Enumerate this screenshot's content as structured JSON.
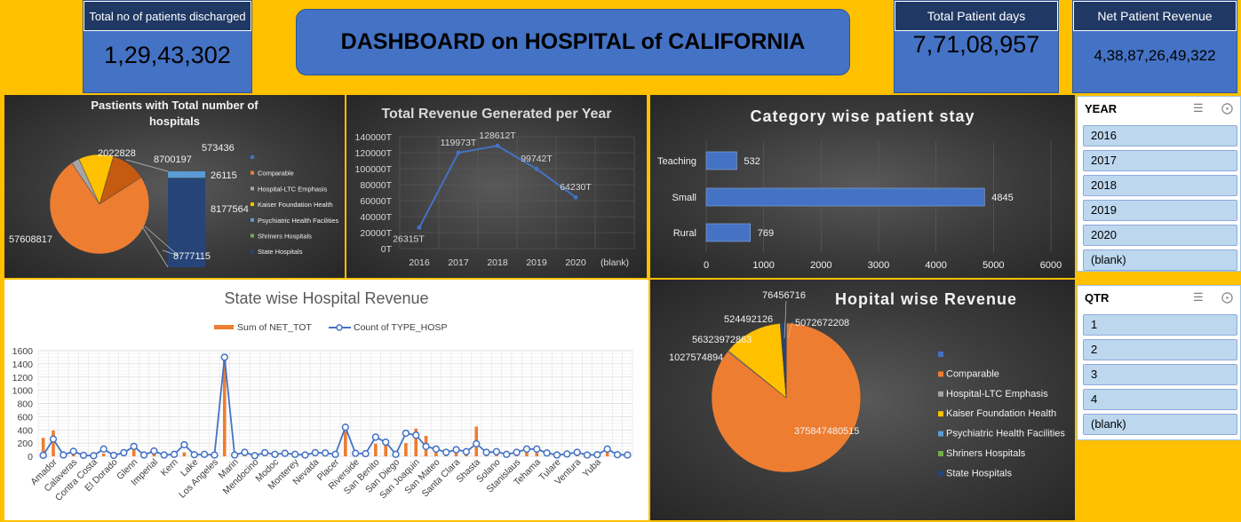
{
  "kpis": {
    "discharged": {
      "label": "Total no of patients discharged",
      "value": "1,29,43,302"
    },
    "patient_days": {
      "label": "Total Patient days",
      "value": "7,71,08,957"
    },
    "net_revenue": {
      "label": "Net Patient Revenue",
      "value": "4,38,87,26,49,322"
    }
  },
  "dashboard_title": "DASHBOARD on HOSPITAL of CALIFORNIA",
  "slicers": {
    "year": {
      "title": "YEAR",
      "items": [
        "2016",
        "2017",
        "2018",
        "2019",
        "2020",
        "(blank)"
      ]
    },
    "qtr": {
      "title": "QTR",
      "items": [
        "1",
        "2",
        "3",
        "4",
        "(blank)"
      ]
    }
  },
  "chart_data": [
    {
      "type": "pie",
      "title": "Pastients with Total number of hospitals",
      "legend_position": "right",
      "legend": [
        "",
        "Comparable",
        "Hospital-LTC Emphasis",
        "Kaiser Foundation Health",
        "Psychiatric Health Facilities",
        "Shriners Hospitals",
        "State Hospitals"
      ],
      "colors": [
        "#4472C4",
        "#ED7D31",
        "#A5A5A5",
        "#FFC000",
        "#5B9BD5",
        "#70AD47",
        "#264478"
      ],
      "pie_slices": [
        {
          "label": "Comparable",
          "value": 57608817,
          "color": "#ED7D31"
        },
        {
          "label": "Hospital-LTC Emphasis",
          "value": 2022828,
          "color": "#A5A5A5"
        },
        {
          "label": "Kaiser Foundation Health",
          "value": 8700197,
          "color": "#FFC000"
        },
        {
          "label": "",
          "value": 8777115,
          "color": "#C55A11"
        }
      ],
      "bar_of_pie": [
        {
          "label": "Psychiatric Health Facilities",
          "value": 573436,
          "color": "#5B9BD5"
        },
        {
          "label": "Shriners Hospitals",
          "value": 26115,
          "color": "#70AD47"
        },
        {
          "label": "State Hospitals",
          "value": 8177564,
          "color": "#264478"
        }
      ],
      "data_labels": [
        "57608817",
        "2022828",
        "8700197",
        "573436",
        "26115",
        "8177564",
        "8777115"
      ]
    },
    {
      "type": "line",
      "title": "Total Revenue Generated per Year",
      "categories": [
        "2016",
        "2017",
        "2018",
        "2019",
        "2020",
        "(blank)"
      ],
      "values": [
        26315,
        119973,
        128612,
        99742,
        64230,
        null
      ],
      "data_labels": [
        "26315T",
        "119973T",
        "128612T",
        "99742T",
        "64230T",
        ""
      ],
      "y_ticks": [
        "0T",
        "20000T",
        "40000T",
        "60000T",
        "80000T",
        "100000T",
        "120000T",
        "140000T"
      ],
      "ylim": [
        0,
        140000
      ],
      "grid": true,
      "color": "#4472C4"
    },
    {
      "type": "bar",
      "orientation": "horizontal",
      "title": "Category wise patient stay",
      "categories": [
        "Teaching",
        "Small",
        "Rural"
      ],
      "values": [
        532,
        4845,
        769
      ],
      "x_ticks": [
        "0",
        "1000",
        "2000",
        "3000",
        "4000",
        "5000",
        "6000"
      ],
      "xlim": [
        0,
        6000
      ],
      "grid": true,
      "color": "#4472C4"
    },
    {
      "type": "pie",
      "title": "Hopital wise Revenue",
      "legend_position": "right",
      "legend": [
        "",
        "Comparable",
        "Hospital-LTC Emphasis",
        "Kaiser Foundation Health",
        "Psychiatric Health Facilities",
        "Shriners Hospitals",
        "State Hospitals"
      ],
      "colors": [
        "#4472C4",
        "#ED7D31",
        "#A5A5A5",
        "#FFC000",
        "#5B9BD5",
        "#70AD47",
        "#264478"
      ],
      "slices": [
        {
          "label": "",
          "value": 76456716,
          "color": "#4472C4"
        },
        {
          "label": "Comparable",
          "value": 375847480515,
          "color": "#ED7D31"
        },
        {
          "label": "Hospital-LTC Emphasis",
          "value": 1027574894,
          "color": "#A5A5A5"
        },
        {
          "label": "Kaiser Foundation Health",
          "value": 56323972863,
          "color": "#FFC000"
        },
        {
          "label": "Psychiatric Health Facilities",
          "value": 524492126,
          "color": "#5B9BD5"
        },
        {
          "label": "State Hospitals",
          "value": 5072672208,
          "color": "#264478"
        }
      ]
    },
    {
      "type": "bar",
      "combo_with": "line",
      "title": "State wise Hospital Revenue",
      "legend_position": "top",
      "series": [
        {
          "name": "Sum of NET_TOT",
          "kind": "bar",
          "color": "#ED7D31"
        },
        {
          "name": "Count of TYPE_HOSP",
          "kind": "line",
          "color": "#4472C4"
        }
      ],
      "x_labels": [
        "Amador",
        "Calaveras",
        "Contra Costa",
        "El Dorado",
        "Glenn",
        "Imperial",
        "Kern",
        "Lake",
        "Los Angeles",
        "Marin",
        "Mendocino",
        "Modoc",
        "Monterey",
        "Nevada",
        "Placer",
        "Riverside",
        "San Benito",
        "San Diego",
        "San Joaquin",
        "San Mateo",
        "Santa Clara",
        "Shasta",
        "Solano",
        "Stanislaus",
        "Tehama",
        "Tulare",
        "Ventura",
        "Yuba"
      ],
      "line_values": [
        15,
        260,
        20,
        75,
        15,
        10,
        110,
        15,
        55,
        150,
        20,
        80,
        20,
        30,
        175,
        25,
        30,
        20,
        1500,
        20,
        60,
        10,
        55,
        30,
        45,
        30,
        20,
        55,
        50,
        30,
        440,
        45,
        40,
        290,
        215,
        30,
        350,
        320,
        150,
        110,
        60,
        100,
        70,
        190,
        60,
        70,
        30,
        60,
        110,
        110,
        50,
        20,
        35,
        60,
        20,
        25,
        110,
        25,
        20
      ],
      "bar_values": [
        280,
        390,
        20,
        40,
        15,
        10,
        40,
        15,
        30,
        100,
        20,
        40,
        20,
        20,
        60,
        20,
        20,
        10,
        1480,
        20,
        30,
        10,
        20,
        20,
        20,
        20,
        10,
        20,
        20,
        20,
        380,
        30,
        30,
        190,
        170,
        20,
        200,
        420,
        310,
        100,
        60,
        70,
        60,
        450,
        50,
        40,
        20,
        40,
        80,
        60,
        30,
        20,
        30,
        40,
        20,
        20,
        60,
        20,
        20
      ],
      "y_ticks": [
        "0",
        "200",
        "400",
        "600",
        "800",
        "1000",
        "1200",
        "1400",
        "1600"
      ],
      "ylim": [
        0,
        1600
      ],
      "grid": true
    }
  ]
}
